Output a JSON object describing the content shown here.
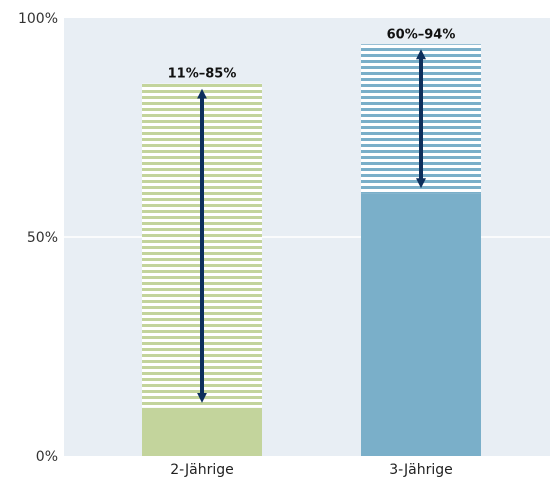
{
  "chart_data": {
    "type": "bar",
    "categories": [
      "2-Jährige",
      "3-Jährige"
    ],
    "series": [
      {
        "values": [
          11,
          60
        ]
      }
    ],
    "ranges": [
      {
        "category": "2-Jährige",
        "low": 11,
        "high": 85,
        "label": "11%–85%"
      },
      {
        "category": "3-Jährige",
        "low": 60,
        "high": 94,
        "label": "60%–94%"
      }
    ],
    "yticks": [
      {
        "value": 0,
        "label": "0%"
      },
      {
        "value": 50,
        "label": "50%"
      },
      {
        "value": 100,
        "label": "100%"
      }
    ],
    "ylim": [
      0,
      100
    ],
    "grid": true,
    "colors": {
      "background": "#e8eef4",
      "gridline": "#ffffff",
      "bar_2": "#c3d49c",
      "bar_3": "#7aafc9",
      "arrow": "#0d2f5c"
    }
  }
}
